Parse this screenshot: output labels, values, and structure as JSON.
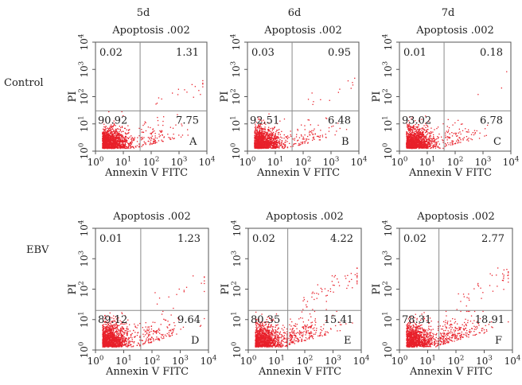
{
  "figure": {
    "row_labels": [
      "Control",
      "EBV"
    ],
    "column_labels": [
      "5d",
      "6d",
      "7d"
    ],
    "panel_title": "Apoptosis .002"
  },
  "colors": {
    "dots": "#e8202a",
    "axes": "#555555",
    "quadrant_lines": "#8a8a8a",
    "text": "#222222"
  },
  "chart_data": [
    {
      "type": "scatter",
      "id": "A",
      "row": "Control",
      "day": "5d",
      "title": "Apoptosis .002",
      "xlabel": "Annexin V FITC",
      "ylabel": "PI",
      "xscale": "log",
      "yscale": "log",
      "xlim": [
        1,
        10000
      ],
      "ylim": [
        1,
        10000
      ],
      "xticks": [
        "10^0",
        "10^1",
        "10^2",
        "10^3",
        "10^4"
      ],
      "yticks": [
        "10^0",
        "10^1",
        "10^2",
        "10^3",
        "10^4"
      ],
      "quadrant_gate": {
        "x": 40,
        "y": 30
      },
      "quadrants": {
        "upper_left": "0.02",
        "upper_right": "1.31",
        "lower_left": "90.92",
        "lower_right": "7.75"
      }
    },
    {
      "type": "scatter",
      "id": "B",
      "row": "Control",
      "day": "6d",
      "title": "Apoptosis .002",
      "xlabel": "Annexin V FITC",
      "ylabel": "PI",
      "xscale": "log",
      "yscale": "log",
      "xlim": [
        1,
        10000
      ],
      "ylim": [
        1,
        10000
      ],
      "xticks": [
        "10^0",
        "10^1",
        "10^2",
        "10^3",
        "10^4"
      ],
      "yticks": [
        "10^0",
        "10^1",
        "10^2",
        "10^3",
        "10^4"
      ],
      "quadrant_gate": {
        "x": 40,
        "y": 30
      },
      "quadrants": {
        "upper_left": "0.03",
        "upper_right": "0.95",
        "lower_left": "92.51",
        "lower_right": "6.48"
      }
    },
    {
      "type": "scatter",
      "id": "C",
      "row": "Control",
      "day": "7d",
      "title": "Apoptosis .002",
      "xlabel": "Annexin V FITC",
      "ylabel": "PI",
      "xscale": "log",
      "yscale": "log",
      "xlim": [
        1,
        10000
      ],
      "ylim": [
        1,
        10000
      ],
      "xticks": [
        "10^0",
        "10^1",
        "10^2",
        "10^3",
        "10^4"
      ],
      "yticks": [
        "10^0",
        "10^1",
        "10^2",
        "10^3",
        "10^4"
      ],
      "quadrant_gate": {
        "x": 40,
        "y": 30
      },
      "quadrants": {
        "upper_left": "0.01",
        "upper_right": "0.18",
        "lower_left": "93.02",
        "lower_right": "6.78"
      }
    },
    {
      "type": "scatter",
      "id": "D",
      "row": "EBV",
      "day": "5d",
      "title": "Apoptosis .002",
      "xlabel": "Annexin V FITC",
      "ylabel": "PI",
      "xscale": "log",
      "yscale": "log",
      "xlim": [
        1,
        10000
      ],
      "ylim": [
        1,
        10000
      ],
      "xticks": [
        "10^0",
        "10^1",
        "10^2",
        "10^3",
        "10^4"
      ],
      "yticks": [
        "10^0",
        "10^1",
        "10^2",
        "10^3",
        "10^4"
      ],
      "quadrant_gate": {
        "x": 40,
        "y": 20
      },
      "quadrants": {
        "upper_left": "0.01",
        "upper_right": "1.23",
        "lower_left": "89.12",
        "lower_right": "9.64"
      }
    },
    {
      "type": "scatter",
      "id": "E",
      "row": "EBV",
      "day": "6d",
      "title": "Apoptosis .002",
      "xlabel": "Annexin V FITC",
      "ylabel": "PI",
      "xscale": "log",
      "yscale": "log",
      "xlim": [
        1,
        10000
      ],
      "ylim": [
        1,
        10000
      ],
      "xticks": [
        "10^0",
        "10^1",
        "10^2",
        "10^3",
        "10^4"
      ],
      "yticks": [
        "10^0",
        "10^1",
        "10^2",
        "10^3",
        "10^4"
      ],
      "quadrant_gate": {
        "x": 25,
        "y": 20
      },
      "quadrants": {
        "upper_left": "0.02",
        "upper_right": "4.22",
        "lower_left": "80.35",
        "lower_right": "15.41"
      }
    },
    {
      "type": "scatter",
      "id": "F",
      "row": "EBV",
      "day": "7d",
      "title": "Apoptosis .002",
      "xlabel": "Annexin V FITC",
      "ylabel": "PI",
      "xscale": "log",
      "yscale": "log",
      "xlim": [
        1,
        10000
      ],
      "ylim": [
        1,
        10000
      ],
      "xticks": [
        "10^0",
        "10^1",
        "10^2",
        "10^3",
        "10^4"
      ],
      "yticks": [
        "10^0",
        "10^1",
        "10^2",
        "10^3",
        "10^4"
      ],
      "quadrant_gate": {
        "x": 25,
        "y": 20
      },
      "quadrants": {
        "upper_left": "0.02",
        "upper_right": "2.77",
        "lower_left": "78.31",
        "lower_right": "18.91"
      }
    }
  ]
}
